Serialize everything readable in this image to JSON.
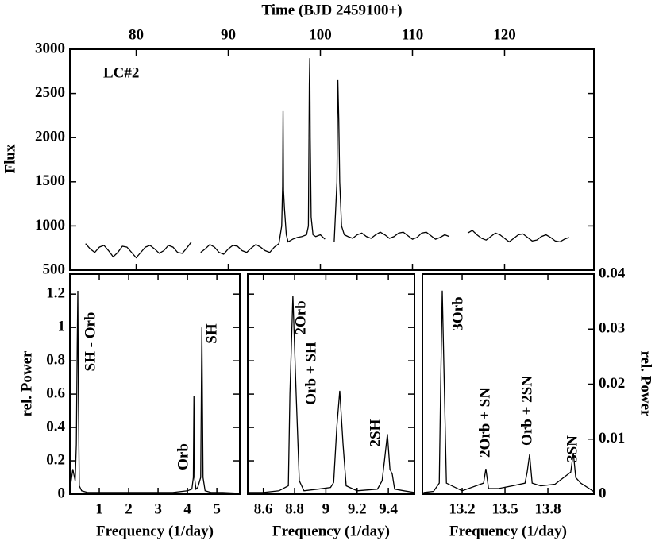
{
  "chart_data": [
    {
      "type": "line",
      "x_label": "Time (BJD 2459100+)",
      "y_label": "Flux",
      "annotations": [
        "LC#2"
      ],
      "xlim": [
        72.8,
        129.7
      ],
      "xticks": [
        80,
        90,
        100,
        110,
        120
      ],
      "ylim": [
        500,
        3000
      ],
      "yticks": [
        500,
        1000,
        1500,
        2000,
        2500,
        3000
      ],
      "series": [
        {
          "name": "LC#2",
          "color": "#000000",
          "x": [
            74.5,
            75,
            75.5,
            76,
            76.5,
            77,
            77.5,
            78,
            78.5,
            79,
            79.5,
            80,
            80.5,
            81,
            81.5,
            82,
            82.5,
            83,
            83.5,
            84,
            84.5,
            85,
            85.5,
            86,
            86.5,
            87,
            87.5,
            88,
            88.5,
            89,
            89.5,
            90,
            90.5,
            91,
            91.5,
            92,
            92.5,
            93,
            93.5,
            94,
            94.5,
            95,
            95.5,
            95.8,
            95.9,
            95.95,
            96,
            96.1,
            96.3,
            96.5,
            97,
            97.5,
            98,
            98.5,
            98.7,
            98.8,
            98.85,
            98.9,
            99,
            99.2,
            99.5,
            100,
            100.5,
            101,
            101.5,
            101.8,
            101.9,
            102,
            102.1,
            102.3,
            102.6,
            103,
            103.5,
            104,
            104.5,
            105,
            105.5,
            106,
            106.5,
            107,
            107.5,
            108,
            108.5,
            109,
            109.5,
            110,
            110.5,
            111,
            111.5,
            112,
            112.5,
            113,
            113.5,
            114,
            115,
            116,
            116.5,
            117,
            117.5,
            118,
            118.5,
            119,
            119.5,
            120,
            120.5,
            121,
            121.5,
            122,
            122.5,
            123,
            123.5,
            124,
            124.5,
            125,
            125.5,
            126,
            126.5,
            127
          ],
          "values": [
            800,
            740,
            700,
            760,
            780,
            720,
            650,
            700,
            770,
            760,
            700,
            640,
            700,
            760,
            780,
            740,
            690,
            720,
            780,
            760,
            700,
            690,
            750,
            820,
            null,
            700,
            740,
            790,
            760,
            700,
            680,
            740,
            780,
            770,
            720,
            700,
            750,
            790,
            760,
            720,
            700,
            760,
            800,
            1000,
            1450,
            2300,
            1400,
            1200,
            900,
            820,
            850,
            870,
            880,
            900,
            1000,
            2600,
            2900,
            2000,
            1100,
            900,
            880,
            900,
            850,
            null,
            820,
            1500,
            2650,
            2200,
            1500,
            1000,
            900,
            880,
            860,
            900,
            920,
            880,
            860,
            900,
            930,
            900,
            860,
            880,
            920,
            930,
            890,
            850,
            870,
            920,
            930,
            890,
            850,
            870,
            900,
            880,
            null,
            920,
            950,
            900,
            860,
            840,
            880,
            920,
            900,
            860,
            820,
            860,
            900,
            910,
            870,
            830,
            840,
            880,
            900,
            870,
            830,
            820,
            850,
            870
          ]
        }
      ]
    },
    {
      "type": "line",
      "x_label": "Frequency (1/day)",
      "y_label": "rel. Power",
      "annotations": [
        "SH - Orb",
        "Orb",
        "SH"
      ],
      "xlim": [
        0,
        5.78
      ],
      "xticks": [
        1,
        2,
        3,
        4,
        5
      ],
      "ylim": [
        0,
        1.32
      ],
      "yticks": [
        0,
        0.2,
        0.4,
        0.6,
        0.8,
        1,
        1.2
      ],
      "series": [
        {
          "name": "periodogram",
          "color": "#000000",
          "x": [
            0.02,
            0.1,
            0.18,
            0.22,
            0.25,
            0.27,
            0.29,
            0.32,
            0.4,
            0.6,
            1,
            1.5,
            2,
            2.5,
            3,
            3.5,
            4,
            4.15,
            4.2,
            4.22,
            4.24,
            4.29,
            4.35,
            4.45,
            4.49,
            4.53,
            4.6,
            4.8,
            5.2,
            5.75
          ],
          "values": [
            0.05,
            0.15,
            0.08,
            0.3,
            0.9,
            1.22,
            0.6,
            0.05,
            0.02,
            0.01,
            0.01,
            0.01,
            0.01,
            0.01,
            0.01,
            0.01,
            0.02,
            0.03,
            0.1,
            0.59,
            0.1,
            0.03,
            0.04,
            0.1,
            1.0,
            0.1,
            0.02,
            0.01,
            0.01,
            0.005
          ]
        }
      ]
    },
    {
      "type": "line",
      "x_label": "Frequency (1/day)",
      "annotations": [
        "2Orb",
        "Orb + SH",
        "2SH"
      ],
      "xlim": [
        8.5,
        9.567
      ],
      "xticks": [
        8.6,
        8.8,
        9,
        9.2,
        9.4
      ],
      "ylim": [
        0,
        1.32
      ],
      "yticks": [
        0,
        0.2,
        0.4,
        0.6,
        0.8,
        1,
        1.2
      ],
      "series": [
        {
          "name": "periodogram",
          "color": "#000000",
          "x": [
            8.5,
            8.6,
            8.7,
            8.76,
            8.77,
            8.789,
            8.81,
            8.83,
            8.84,
            8.86,
            8.95,
            9.03,
            9.05,
            9.07,
            9.089,
            9.11,
            9.13,
            9.2,
            9.33,
            9.36,
            9.375,
            9.394,
            9.41,
            9.425,
            9.44,
            9.5,
            9.566
          ],
          "values": [
            0.01,
            0.01,
            0.02,
            0.05,
            0.6,
            1.19,
            0.6,
            0.08,
            0.06,
            0.02,
            0.03,
            0.04,
            0.07,
            0.4,
            0.62,
            0.3,
            0.05,
            0.02,
            0.03,
            0.08,
            0.2,
            0.36,
            0.15,
            0.12,
            0.03,
            0.02,
            0.01
          ]
        }
      ]
    },
    {
      "type": "line",
      "x_label": "Frequency (1/day)",
      "y2_label": "rel. Power",
      "annotations": [
        "3Orb",
        "2Orb + SN",
        "Orb + 2SN",
        "3SN"
      ],
      "xlim": [
        12.922,
        14.122
      ],
      "xticks": [
        13.2,
        13.5,
        13.8
      ],
      "y2lim": [
        0,
        0.04
      ],
      "y2ticks": [
        0,
        0.01,
        0.02,
        0.03,
        0.04
      ],
      "series": [
        {
          "name": "periodogram",
          "color": "#000000",
          "axis": "y2",
          "x": [
            12.93,
            13.0,
            13.04,
            13.05,
            13.061,
            13.075,
            13.09,
            13.2,
            13.35,
            13.366,
            13.385,
            13.45,
            13.55,
            13.64,
            13.655,
            13.672,
            13.69,
            13.75,
            13.85,
            13.96,
            13.978,
            13.995,
            14.03,
            14.12
          ],
          "values": [
            0.0003,
            0.0005,
            0.002,
            0.02,
            0.037,
            0.02,
            0.002,
            0.0006,
            0.002,
            0.0046,
            0.001,
            0.001,
            0.0015,
            0.002,
            0.004,
            0.0072,
            0.002,
            0.0015,
            0.0018,
            0.004,
            0.0075,
            0.003,
            0.002,
            0.0005
          ]
        }
      ]
    }
  ]
}
